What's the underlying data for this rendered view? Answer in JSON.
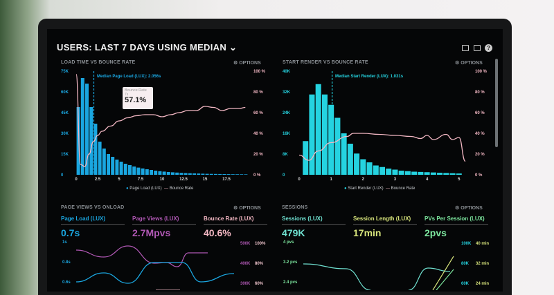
{
  "header": {
    "title_prefix": "USERS:",
    "title_main": "LAST 7 DAYS USING MEDIAN",
    "dropdown_icon": "chevron-down-icon",
    "icons": [
      "monitor-icon",
      "image-icon",
      "help-icon"
    ]
  },
  "panels": {
    "load_time": {
      "title": "LOAD TIME VS BOUNCE RATE",
      "options": "OPTIONS",
      "median_label": "Median Page Load (LUX): 2.056s",
      "tooltip": {
        "label": "Bounce Rate",
        "sub": "7s",
        "value": "57.1%"
      },
      "legend": [
        "Page Load (LUX)",
        "Bounce Rate"
      ]
    },
    "start_render": {
      "title": "START RENDER VS BOUNCE RATE",
      "options": "OPTIONS",
      "median_label": "Median Start Render (LUX): 1.031s",
      "legend": [
        "Start Render (LUX)",
        "Bounce Rate"
      ]
    },
    "page_views": {
      "title": "PAGE VIEWS VS ONLOAD",
      "options": "OPTIONS",
      "metrics": [
        {
          "label": "Page Load (LUX)",
          "value": "0.7s",
          "color": "#1aa6e0"
        },
        {
          "label": "Page Views (LUX)",
          "value": "2.7Mpvs",
          "color": "#b158b5"
        },
        {
          "label": "Bounce Rate (LUX)",
          "value": "40.6%",
          "color": "#f4b8c4"
        }
      ],
      "left_ticks": [
        "1s",
        "0.8s",
        "0.6s"
      ],
      "right_ticks_a": [
        "500K",
        "400K",
        "300K"
      ],
      "right_ticks_b": [
        "100%",
        "80%",
        "60%"
      ]
    },
    "sessions": {
      "title": "SESSIONS",
      "options": "OPTIONS",
      "metrics": [
        {
          "label": "Sessions (LUX)",
          "value": "479K",
          "color": "#6fe0d0"
        },
        {
          "label": "Session Length (LUX)",
          "value": "17min",
          "color": "#d8e57c"
        },
        {
          "label": "PVs Per Session (LUX)",
          "value": "2pvs",
          "color": "#7ee8a0"
        }
      ],
      "left_ticks": [
        "4 pvs",
        "3.2 pvs",
        "2.4 pvs"
      ],
      "right_ticks_a": [
        "100K",
        "80K",
        "60K"
      ],
      "right_ticks_b": [
        "40 min",
        "32 min",
        "24 min"
      ]
    }
  },
  "colors": {
    "blue": "#1aa6e0",
    "cyan": "#25d3e0",
    "pink": "#f2b7c3",
    "purple": "#b158b5"
  },
  "chart_data": [
    {
      "type": "bar",
      "title": "LOAD TIME VS BOUNCE RATE",
      "xlim": [
        0,
        20
      ],
      "xticks": [
        "0",
        "2.5",
        "5",
        "7.5",
        "10",
        "12.5",
        "15",
        "17.5"
      ],
      "ylim": [
        0,
        75000
      ],
      "yticks": [
        "75K",
        "60K",
        "45K",
        "30K",
        "15K",
        "0"
      ],
      "y2ticks": [
        "100 %",
        "80 %",
        "60 %",
        "40 %",
        "20 %",
        "0 %"
      ],
      "bin_width": 0.5,
      "series": [
        {
          "name": "Page Load (LUX)",
          "values": [
            49000,
            70000,
            66000,
            49000,
            37000,
            24000,
            19000,
            15000,
            13000,
            11000,
            9500,
            8000,
            7000,
            6000,
            5200,
            4600,
            4000,
            3500,
            3000,
            2600,
            2300,
            2000,
            1800,
            1600,
            1400,
            1250,
            1100,
            1000,
            900,
            800,
            700,
            650,
            600,
            550,
            500,
            450,
            400,
            380,
            350,
            320
          ]
        },
        {
          "name": "Bounce Rate",
          "axis": "right",
          "points": [
            [
              0,
              97
            ],
            [
              0.5,
              10
            ],
            [
              1,
              8
            ],
            [
              1.5,
              20
            ],
            [
              2,
              32
            ],
            [
              2.5,
              38
            ],
            [
              3,
              42
            ],
            [
              4,
              47
            ],
            [
              5,
              52
            ],
            [
              6,
              55
            ],
            [
              7,
              57
            ],
            [
              8,
              58
            ],
            [
              9,
              58
            ],
            [
              10,
              56
            ],
            [
              11,
              58
            ],
            [
              12,
              60
            ],
            [
              13,
              62
            ],
            [
              14,
              62
            ],
            [
              15,
              66
            ],
            [
              16,
              65
            ],
            [
              17,
              62
            ],
            [
              18,
              64
            ],
            [
              19,
              64
            ],
            [
              19.7,
              65
            ]
          ]
        }
      ],
      "median": 2.056
    },
    {
      "type": "bar",
      "title": "START RENDER VS BOUNCE RATE",
      "xlim": [
        0,
        5.2
      ],
      "xticks": [
        "0",
        "1",
        "2",
        "3",
        "4",
        "5"
      ],
      "ylim": [
        0,
        40000
      ],
      "yticks": [
        "40K",
        "32K",
        "24K",
        "16K",
        "8K",
        "0"
      ],
      "y2ticks": [
        "100 %",
        "80 %",
        "60 %",
        "40 %",
        "20 %",
        "0 %"
      ],
      "bin_width": 0.2,
      "series": [
        {
          "name": "Start Render (LUX)",
          "values": [
            13000,
            31000,
            35000,
            31000,
            27000,
            22000,
            16000,
            12000,
            8200,
            6000,
            4800,
            3600,
            3000,
            2400,
            2000,
            1600,
            1400,
            1200,
            1100,
            1000,
            900,
            800,
            700,
            600,
            500
          ]
        },
        {
          "name": "Bounce Rate",
          "axis": "right",
          "points": [
            [
              0,
              19
            ],
            [
              0.3,
              14
            ],
            [
              0.6,
              23
            ],
            [
              1,
              31
            ],
            [
              1.5,
              37
            ],
            [
              1.7,
              40
            ],
            [
              2,
              40
            ],
            [
              2.5,
              39
            ],
            [
              3,
              38
            ],
            [
              3.5,
              37
            ],
            [
              3.8,
              35
            ],
            [
              4,
              38
            ],
            [
              4.2,
              34
            ],
            [
              4.6,
              39
            ],
            [
              4.8,
              34
            ],
            [
              5,
              36
            ],
            [
              5.2,
              13
            ]
          ]
        }
      ],
      "median": 1.031
    }
  ]
}
